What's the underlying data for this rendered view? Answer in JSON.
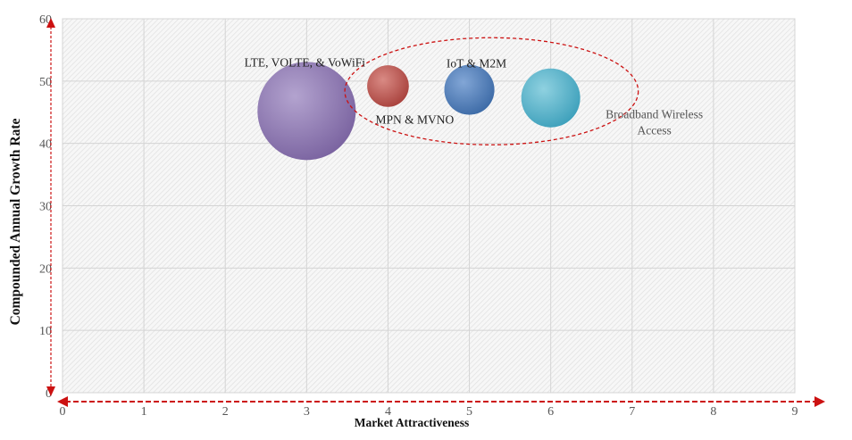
{
  "chart_data": {
    "type": "bubble",
    "xlabel": "Market Attractiveness",
    "ylabel": "Compounded  Annual  Growth Rate",
    "xlim": [
      0,
      9
    ],
    "ylim": [
      0,
      60
    ],
    "x_ticks": [
      "0",
      "1",
      "2",
      "3",
      "4",
      "5",
      "6",
      "7",
      "8",
      "9"
    ],
    "y_ticks": [
      "0",
      "10",
      "20",
      "30",
      "40",
      "50",
      "60"
    ],
    "grid": true,
    "series": [
      {
        "name": "LTE, VOLTE, & VoWiFi",
        "label_lines": [
          "LTE, VOLTE, & VoWiFi"
        ],
        "x": 3,
        "y": 45.2,
        "size": 100,
        "color": "#8a74b0"
      },
      {
        "name": "MPN & MVNO",
        "label_lines": [
          "MPN & MVNO"
        ],
        "x": 4,
        "y": 49.2,
        "size": 18,
        "color": "#b84d47"
      },
      {
        "name": "IoT & M2M",
        "label_lines": [
          "IoT & M2M"
        ],
        "x": 5,
        "y": 48.6,
        "size": 26,
        "color": "#4a7bb8"
      },
      {
        "name": "Broadband Wireless Access",
        "label_lines": [
          "Broadband Wireless",
          "Access"
        ],
        "x": 6,
        "y": 47.3,
        "size": 36,
        "color": "#4aaec6"
      }
    ],
    "highlight_group": [
      "MPN & MVNO",
      "IoT & M2M",
      "Broadband Wireless Access"
    ],
    "colors": {
      "arrow": "#cc1111",
      "highlight_ellipse": "#cc1111",
      "grid": "#d4d4d4",
      "hatch": "#e2e2e2"
    }
  }
}
